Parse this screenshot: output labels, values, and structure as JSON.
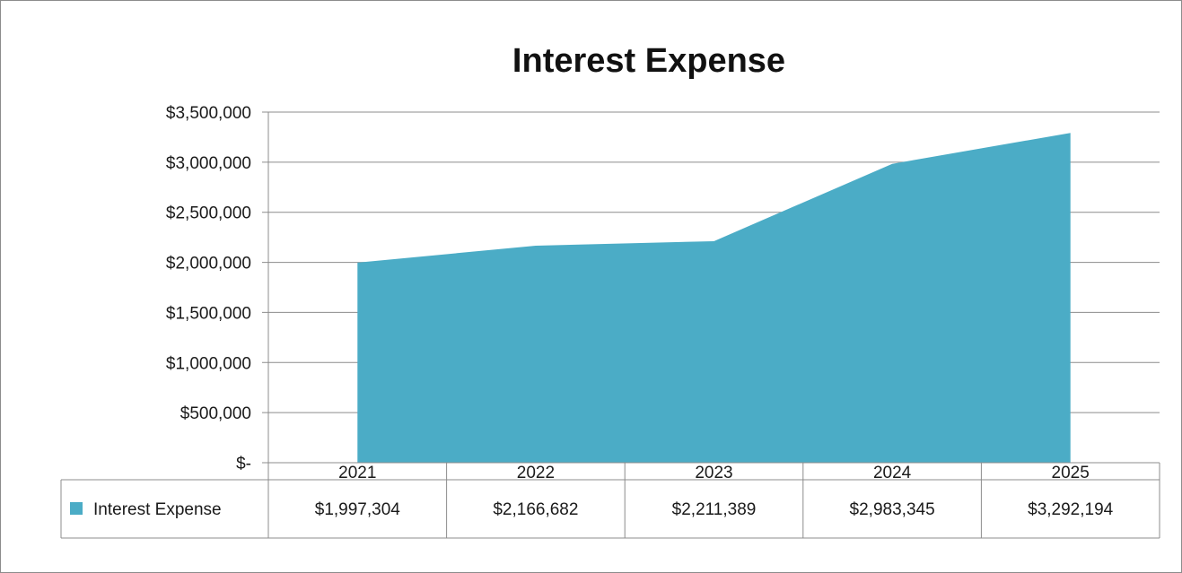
{
  "chart_data": {
    "type": "area",
    "title": "Interest Expense",
    "categories": [
      "2021",
      "2022",
      "2023",
      "2024",
      "2025"
    ],
    "series": [
      {
        "name": "Interest Expense",
        "values": [
          1997304,
          2166682,
          2211389,
          2983345,
          3292194
        ]
      }
    ],
    "data_table_values": [
      "$1,997,304",
      "$2,166,682",
      "$2,211,389",
      "$2,983,345",
      "$3,292,194"
    ],
    "y_ticks": [
      {
        "value": 0,
        "label": "$-"
      },
      {
        "value": 500000,
        "label": "$500,000"
      },
      {
        "value": 1000000,
        "label": "$1,000,000"
      },
      {
        "value": 1500000,
        "label": "$1,500,000"
      },
      {
        "value": 2000000,
        "label": "$2,000,000"
      },
      {
        "value": 2500000,
        "label": "$2,500,000"
      },
      {
        "value": 3000000,
        "label": "$3,000,000"
      },
      {
        "value": 3500000,
        "label": "$3,500,000"
      }
    ],
    "ylim": [
      0,
      3500000
    ],
    "grid": true,
    "legend": "data-table",
    "color": "#4bacc6"
  }
}
